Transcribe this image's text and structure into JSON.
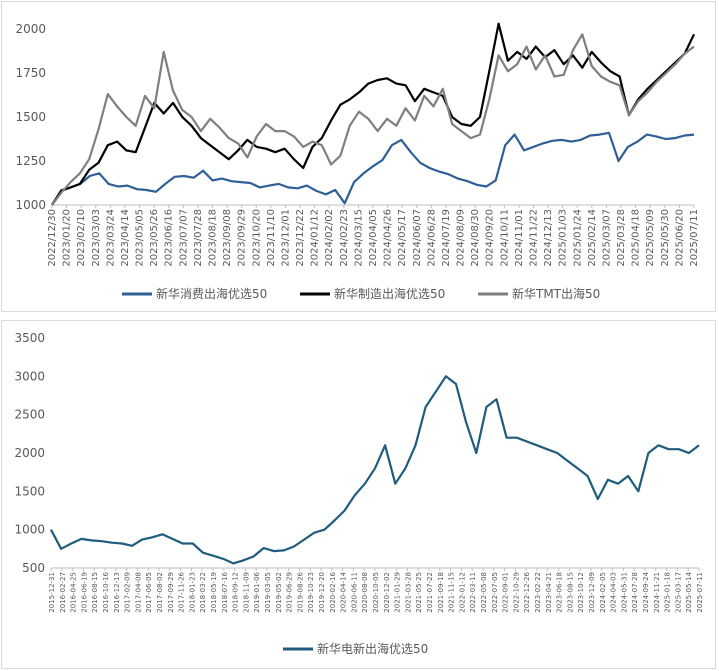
{
  "chart_data": [
    {
      "type": "line",
      "legend_position": "bottom",
      "grid": false,
      "ylim": [
        1000,
        2000
      ],
      "y_ticks": [
        "1000",
        "1250",
        "1500",
        "1750",
        "2000"
      ],
      "x_ticks": [
        "2022/12/30",
        "2023/01/20",
        "2023/02/10",
        "2023/03/03",
        "2023/03/24",
        "2023/04/14",
        "2023/05/05",
        "2023/05/26",
        "2023/06/16",
        "2023/07/07",
        "2023/07/28",
        "2023/08/18",
        "2023/09/08",
        "2023/09/29",
        "2023/10/20",
        "2023/11/10",
        "2023/12/01",
        "2023/12/22",
        "2024/01/12",
        "2024/02/02",
        "2024/02/23",
        "2024/03/15",
        "2024/04/05",
        "2024/04/26",
        "2024/05/17",
        "2024/06/07",
        "2024/06/28",
        "2024/07/19",
        "2024/08/09",
        "2024/08/30",
        "2024/09/20",
        "2024/10/11",
        "2024/11/01",
        "2024/11/22",
        "2024/12/13",
        "2025/01/03",
        "2025/01/24",
        "2025/02/14",
        "2025/03/07",
        "2025/03/28",
        "2025/04/18",
        "2025/05/09",
        "2025/05/30",
        "2025/06/20",
        "2025/07/11"
      ],
      "series": [
        {
          "name": "新华消费出海优选50",
          "color": "#2e5f96",
          "values": [
            1000,
            1085,
            1100,
            1120,
            1165,
            1180,
            1120,
            1105,
            1110,
            1090,
            1085,
            1075,
            1120,
            1160,
            1165,
            1155,
            1195,
            1140,
            1150,
            1135,
            1130,
            1125,
            1100,
            1110,
            1120,
            1100,
            1095,
            1110,
            1080,
            1060,
            1085,
            1010,
            1130,
            1180,
            1220,
            1255,
            1340,
            1370,
            1300,
            1240,
            1210,
            1190,
            1175,
            1150,
            1135,
            1115,
            1105,
            1140,
            1340,
            1400,
            1310,
            1330,
            1350,
            1365,
            1370,
            1360,
            1370,
            1395,
            1400,
            1410,
            1250,
            1330,
            1360,
            1400,
            1390,
            1375,
            1380,
            1395,
            1400
          ]
        },
        {
          "name": "新华制造出海优选50",
          "color": "#000000",
          "values": [
            1000,
            1080,
            1100,
            1120,
            1200,
            1240,
            1340,
            1360,
            1310,
            1300,
            1440,
            1580,
            1520,
            1580,
            1500,
            1450,
            1380,
            1340,
            1300,
            1260,
            1310,
            1370,
            1330,
            1320,
            1300,
            1320,
            1260,
            1210,
            1330,
            1380,
            1480,
            1570,
            1600,
            1640,
            1690,
            1710,
            1720,
            1690,
            1680,
            1590,
            1660,
            1640,
            1620,
            1500,
            1460,
            1450,
            1500,
            1760,
            2030,
            1820,
            1870,
            1830,
            1900,
            1840,
            1880,
            1800,
            1850,
            1780,
            1870,
            1810,
            1760,
            1730,
            1510,
            1600,
            1660,
            1710,
            1760,
            1810,
            1860,
            1970
          ]
        },
        {
          "name": "新华TMT出海50",
          "color": "#7f7f7f",
          "values": [
            1000,
            1070,
            1130,
            1180,
            1260,
            1430,
            1630,
            1560,
            1500,
            1450,
            1620,
            1550,
            1870,
            1650,
            1540,
            1500,
            1420,
            1490,
            1440,
            1380,
            1350,
            1270,
            1390,
            1460,
            1420,
            1420,
            1390,
            1330,
            1360,
            1340,
            1230,
            1280,
            1450,
            1530,
            1490,
            1420,
            1490,
            1450,
            1550,
            1480,
            1620,
            1560,
            1660,
            1460,
            1420,
            1380,
            1400,
            1600,
            1850,
            1760,
            1800,
            1900,
            1770,
            1850,
            1730,
            1740,
            1880,
            1970,
            1790,
            1730,
            1700,
            1680,
            1510,
            1590,
            1640,
            1700,
            1750,
            1800,
            1860,
            1900
          ]
        }
      ]
    },
    {
      "type": "line",
      "legend_position": "bottom",
      "grid": false,
      "ylim": [
        500,
        3500
      ],
      "y_ticks": [
        "500",
        "1000",
        "1500",
        "2000",
        "2500",
        "3000",
        "3500"
      ],
      "x_ticks": [
        "2015-12-31",
        "2016-02-27",
        "2016-04-25",
        "2016-06-19",
        "2016-08-15",
        "2016-10-16",
        "2016-12-13",
        "2017-02-09",
        "2017-04-08",
        "2017-06-05",
        "2017-08-02",
        "2017-09-29",
        "2017-11-26",
        "2018-01-23",
        "2018-03-22",
        "2018-05-19",
        "2018-07-16",
        "2018-09-12",
        "2018-11-09",
        "2019-01-06",
        "2019-03-05",
        "2019-05-02",
        "2019-06-29",
        "2019-08-26",
        "2019-10-23",
        "2019-12-20",
        "2020-02-16",
        "2020-04-14",
        "2020-06-11",
        "2020-08-08",
        "2020-10-05",
        "2020-12-02",
        "2021-01-29",
        "2021-03-28",
        "2021-05-25",
        "2021-07-22",
        "2021-09-18",
        "2021-11-15",
        "2022-01-12",
        "2022-03-11",
        "2022-05-08",
        "2022-07-05",
        "2022-09-01",
        "2022-10-29",
        "2022-12-26",
        "2023-02-22",
        "2023-04-21",
        "2023-06-18",
        "2023-08-15",
        "2023-10-12",
        "2023-12-09",
        "2024-02-05",
        "2024-04-03",
        "2024-05-31",
        "2024-07-28",
        "2024-09-24",
        "2024-11-21",
        "2025-01-18",
        "2025-03-17",
        "2025-05-14",
        "2025-07-11"
      ],
      "series": [
        {
          "name": "新华电新出海优选50",
          "color": "#1f5c7e",
          "values": [
            1000,
            750,
            820,
            880,
            860,
            850,
            830,
            820,
            790,
            870,
            900,
            940,
            880,
            820,
            820,
            700,
            660,
            620,
            560,
            600,
            650,
            760,
            720,
            730,
            780,
            870,
            960,
            1000,
            1120,
            1250,
            1450,
            1600,
            1800,
            2100,
            1600,
            1800,
            2100,
            2600,
            2800,
            3000,
            2900,
            2400,
            2000,
            2600,
            2700,
            2200,
            2200,
            2150,
            2100,
            2050,
            2000,
            1900,
            1800,
            1700,
            1400,
            1650,
            1600,
            1700,
            1500,
            2000,
            2100,
            2050,
            2050,
            2000,
            2100
          ]
        }
      ]
    }
  ]
}
